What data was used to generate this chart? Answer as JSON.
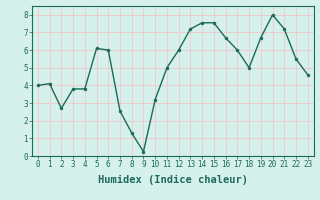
{
  "x": [
    0,
    1,
    2,
    3,
    4,
    5,
    6,
    7,
    8,
    9,
    10,
    11,
    12,
    13,
    14,
    15,
    16,
    17,
    18,
    19,
    20,
    21,
    22,
    23
  ],
  "y": [
    4.0,
    4.1,
    2.7,
    3.8,
    3.8,
    6.1,
    6.0,
    2.55,
    1.3,
    0.25,
    3.2,
    5.0,
    6.0,
    7.2,
    7.55,
    7.55,
    6.7,
    6.0,
    5.0,
    6.7,
    8.0,
    7.2,
    5.5,
    4.6
  ],
  "line_color": "#1a6b5a",
  "marker": "o",
  "marker_size": 2.0,
  "line_width": 1.0,
  "xlabel": "Humidex (Indice chaleur)",
  "xlim": [
    -0.5,
    23.5
  ],
  "ylim": [
    0,
    8.5
  ],
  "yticks": [
    0,
    1,
    2,
    3,
    4,
    5,
    6,
    7,
    8
  ],
  "xticks": [
    0,
    1,
    2,
    3,
    4,
    5,
    6,
    7,
    8,
    9,
    10,
    11,
    12,
    13,
    14,
    15,
    16,
    17,
    18,
    19,
    20,
    21,
    22,
    23
  ],
  "bg_color": "#d6f0ec",
  "grid_color": "#f0c8c8",
  "tick_color": "#1a6b5a",
  "label_color": "#1a6b5a",
  "xlabel_fontsize": 7.5,
  "tick_fontsize": 5.5
}
